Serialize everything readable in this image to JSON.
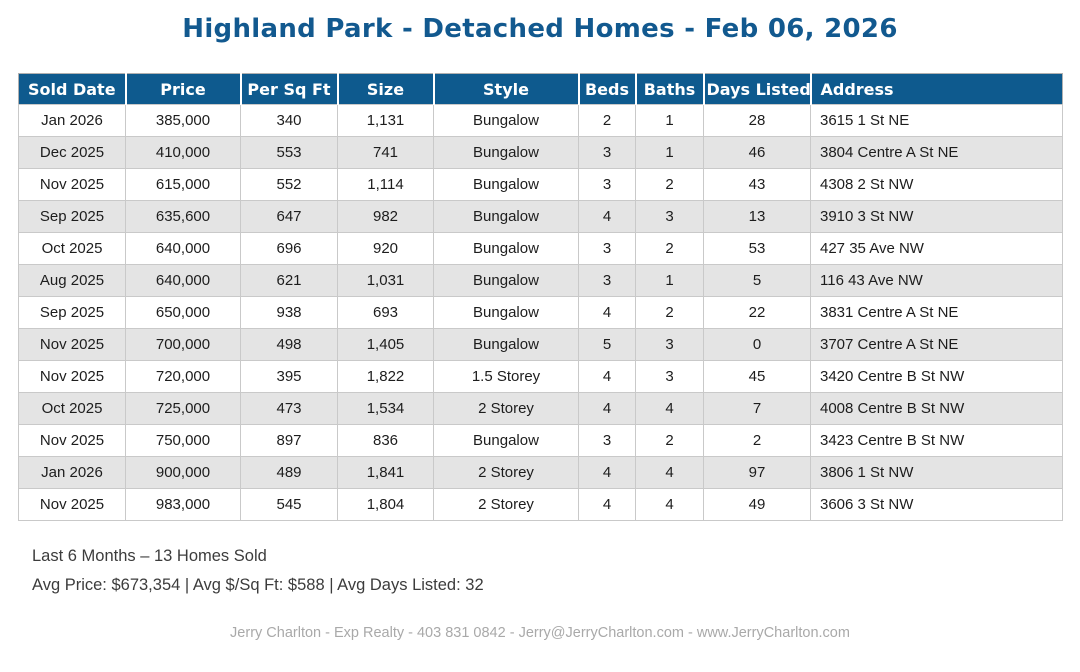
{
  "title": "Highland Park - Detached Homes - Feb 06, 2026",
  "colors": {
    "title_blue": "#12598f",
    "header_blue": "#0e5a8e",
    "row_alt_gray": "#e4e4e4",
    "border_gray": "#c9c9c9",
    "body_text": "#1d1d1d",
    "summary_text": "#3c3c3c",
    "footer_gray": "#a9a9a9"
  },
  "table": {
    "columns": [
      {
        "key": "sold_date",
        "label": "Sold Date"
      },
      {
        "key": "price",
        "label": "Price"
      },
      {
        "key": "per_sq_ft",
        "label": "Per Sq Ft"
      },
      {
        "key": "size",
        "label": "Size"
      },
      {
        "key": "style",
        "label": "Style"
      },
      {
        "key": "beds",
        "label": "Beds"
      },
      {
        "key": "baths",
        "label": "Baths"
      },
      {
        "key": "days_listed",
        "label": "Days Listed"
      },
      {
        "key": "address",
        "label": "Address"
      }
    ],
    "rows": [
      {
        "sold_date": "Jan 2026",
        "price": "385,000",
        "per_sq_ft": "340",
        "size": "1,131",
        "style": "Bungalow",
        "beds": "2",
        "baths": "1",
        "days_listed": "28",
        "address": "3615 1 St NE"
      },
      {
        "sold_date": "Dec 2025",
        "price": "410,000",
        "per_sq_ft": "553",
        "size": "741",
        "style": "Bungalow",
        "beds": "3",
        "baths": "1",
        "days_listed": "46",
        "address": "3804 Centre A St NE"
      },
      {
        "sold_date": "Nov 2025",
        "price": "615,000",
        "per_sq_ft": "552",
        "size": "1,114",
        "style": "Bungalow",
        "beds": "3",
        "baths": "2",
        "days_listed": "43",
        "address": "4308 2 St NW"
      },
      {
        "sold_date": "Sep 2025",
        "price": "635,600",
        "per_sq_ft": "647",
        "size": "982",
        "style": "Bungalow",
        "beds": "4",
        "baths": "3",
        "days_listed": "13",
        "address": "3910 3 St NW"
      },
      {
        "sold_date": "Oct 2025",
        "price": "640,000",
        "per_sq_ft": "696",
        "size": "920",
        "style": "Bungalow",
        "beds": "3",
        "baths": "2",
        "days_listed": "53",
        "address": "427 35 Ave NW"
      },
      {
        "sold_date": "Aug 2025",
        "price": "640,000",
        "per_sq_ft": "621",
        "size": "1,031",
        "style": "Bungalow",
        "beds": "3",
        "baths": "1",
        "days_listed": "5",
        "address": "116 43 Ave NW"
      },
      {
        "sold_date": "Sep 2025",
        "price": "650,000",
        "per_sq_ft": "938",
        "size": "693",
        "style": "Bungalow",
        "beds": "4",
        "baths": "2",
        "days_listed": "22",
        "address": "3831 Centre A St NE"
      },
      {
        "sold_date": "Nov 2025",
        "price": "700,000",
        "per_sq_ft": "498",
        "size": "1,405",
        "style": "Bungalow",
        "beds": "5",
        "baths": "3",
        "days_listed": "0",
        "address": "3707 Centre A St NE"
      },
      {
        "sold_date": "Nov 2025",
        "price": "720,000",
        "per_sq_ft": "395",
        "size": "1,822",
        "style": "1.5 Storey",
        "beds": "4",
        "baths": "3",
        "days_listed": "45",
        "address": "3420 Centre B St NW"
      },
      {
        "sold_date": "Oct 2025",
        "price": "725,000",
        "per_sq_ft": "473",
        "size": "1,534",
        "style": "2 Storey",
        "beds": "4",
        "baths": "4",
        "days_listed": "7",
        "address": "4008 Centre B St NW"
      },
      {
        "sold_date": "Nov 2025",
        "price": "750,000",
        "per_sq_ft": "897",
        "size": "836",
        "style": "Bungalow",
        "beds": "3",
        "baths": "2",
        "days_listed": "2",
        "address": "3423 Centre B St NW"
      },
      {
        "sold_date": "Jan 2026",
        "price": "900,000",
        "per_sq_ft": "489",
        "size": "1,841",
        "style": "2 Storey",
        "beds": "4",
        "baths": "4",
        "days_listed": "97",
        "address": "3806 1 St NW"
      },
      {
        "sold_date": "Nov 2025",
        "price": "983,000",
        "per_sq_ft": "545",
        "size": "1,804",
        "style": "2 Storey",
        "beds": "4",
        "baths": "4",
        "days_listed": "49",
        "address": "3606 3 St NW"
      }
    ]
  },
  "summary": {
    "line1": "Last 6 Months – 13 Homes Sold",
    "line2": "Avg Price: $673,354 | Avg $/Sq Ft: $588 | Avg Days Listed: 32"
  },
  "footer": {
    "contact": "Jerry Charlton - Exp Realty - 403 831 0842 - Jerry@JerryCharlton.com - www.JerryCharlton.com"
  }
}
